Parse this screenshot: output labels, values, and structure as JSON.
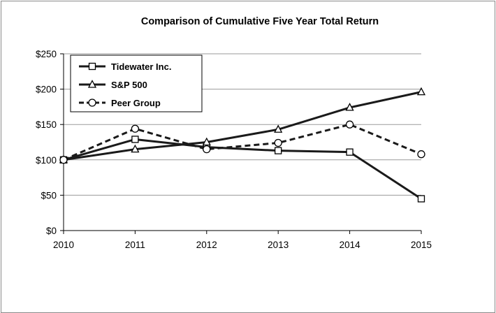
{
  "chart_data": {
    "type": "line",
    "title": "Comparison of Cumulative Five Year Total Return",
    "xlabel": "",
    "ylabel": "",
    "x": [
      "2010",
      "2011",
      "2012",
      "2013",
      "2014",
      "2015"
    ],
    "ylim": [
      0,
      250
    ],
    "yticks": [
      0,
      50,
      100,
      150,
      200,
      250
    ],
    "ytick_labels": [
      "$0",
      "$50",
      "$100",
      "$150",
      "$200",
      "$250"
    ],
    "grid": "horizontal",
    "legend_position": "top-left",
    "series": [
      {
        "name": "Tidewater Inc.",
        "marker": "square",
        "dashed": false,
        "values": [
          100,
          129,
          118,
          113,
          111,
          45
        ]
      },
      {
        "name": "S&P 500",
        "marker": "triangle",
        "dashed": false,
        "values": [
          100,
          115,
          125,
          143,
          174,
          196
        ]
      },
      {
        "name": "Peer Group",
        "marker": "circle",
        "dashed": true,
        "values": [
          100,
          144,
          115,
          124,
          150,
          108
        ]
      }
    ]
  }
}
